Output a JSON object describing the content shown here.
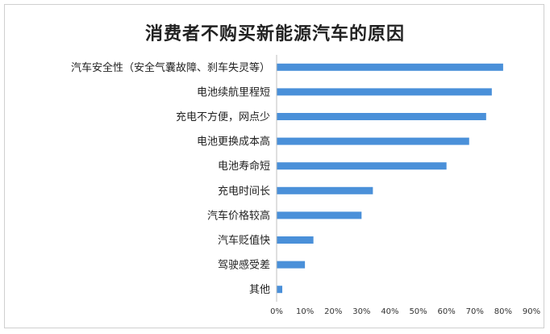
{
  "chart_data": {
    "type": "bar",
    "orientation": "horizontal",
    "title": "消费者不购买新能源汽车的原因",
    "categories": [
      "汽车安全性（安全气囊故障、刹车失灵等）",
      "电池续航里程短",
      "充电不方便，网点少",
      "电池更换成本高",
      "电池寿命短",
      "充电时间长",
      "汽车价格较高",
      "汽车贬值快",
      "驾驶感受差",
      "其他"
    ],
    "values": [
      80,
      76,
      74,
      68,
      60,
      34,
      30,
      13,
      10,
      2
    ],
    "xlim": [
      0,
      90
    ],
    "xticks": [
      "0%",
      "10%",
      "20%",
      "30%",
      "40%",
      "50%",
      "60%",
      "70%",
      "80%",
      "90%"
    ],
    "bar_color": "#4a90d9",
    "grid": false
  }
}
